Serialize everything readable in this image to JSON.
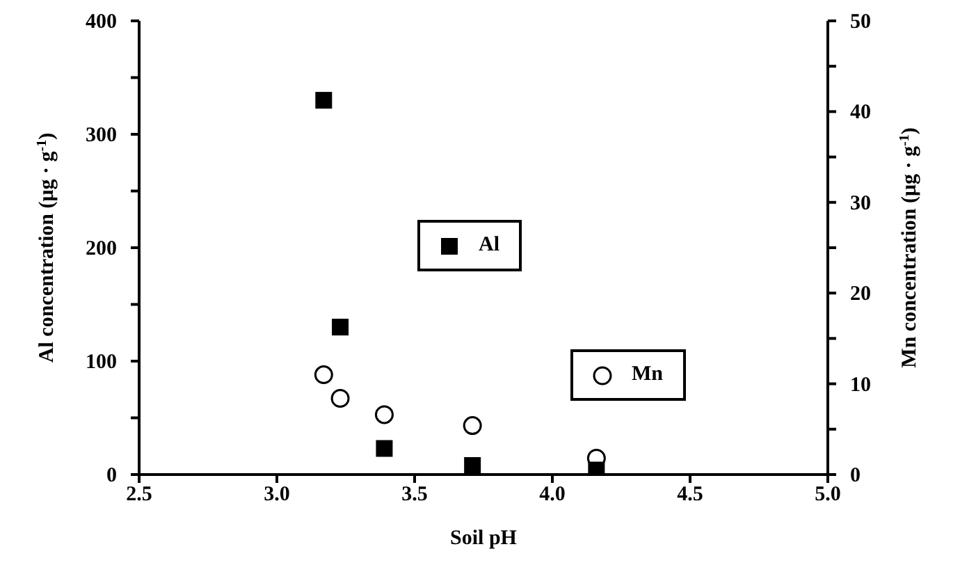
{
  "chart_data": {
    "type": "scatter",
    "xlabel": "Soil pH",
    "ylabel": "Al concentration (μg · g$^{-1}$)",
    "y2label": "Mn concentration (μg · g$^{-1}$)",
    "xlim": [
      2.5,
      5.0
    ],
    "xticks": [
      {
        "value": 2.5,
        "label": "2.5"
      },
      {
        "value": 3.0,
        "label": "3.0"
      },
      {
        "value": 3.5,
        "label": "3.5"
      },
      {
        "value": 4.0,
        "label": "4.0"
      },
      {
        "value": 4.5,
        "label": "4.5"
      },
      {
        "value": 5.0,
        "label": "5.0"
      }
    ],
    "ylim": [
      0,
      400
    ],
    "yticks": [
      0,
      {
        "value": 50,
        "label": null
      },
      100,
      {
        "value": 150,
        "label": null
      },
      200,
      {
        "value": 250,
        "label": null
      },
      300,
      {
        "value": 350,
        "label": null
      },
      400
    ],
    "y2lim": [
      0,
      50
    ],
    "y2ticks": [
      0,
      {
        "value": 5,
        "label": null
      },
      10,
      {
        "value": 15,
        "label": null
      },
      20,
      {
        "value": 25,
        "label": null
      },
      30,
      {
        "value": 35,
        "label": null
      },
      40,
      {
        "value": 45,
        "label": null
      },
      50
    ],
    "grid": false,
    "legend": "center",
    "series": [
      {
        "name": "Al",
        "color": "#000000",
        "marker": "square",
        "x": [
          3.17,
          3.23,
          3.39,
          3.71,
          4.16
        ],
        "values": [
          330,
          130,
          23,
          8,
          4
        ]
      },
      {
        "name": "Mn",
        "color": "#000000",
        "marker": "circle",
        "axis": "y2",
        "x": [
          3.17,
          3.23,
          3.39,
          3.71,
          4.16
        ],
        "values": [
          11.0,
          8.4,
          6.6,
          5.4,
          1.8
        ]
      }
    ]
  }
}
